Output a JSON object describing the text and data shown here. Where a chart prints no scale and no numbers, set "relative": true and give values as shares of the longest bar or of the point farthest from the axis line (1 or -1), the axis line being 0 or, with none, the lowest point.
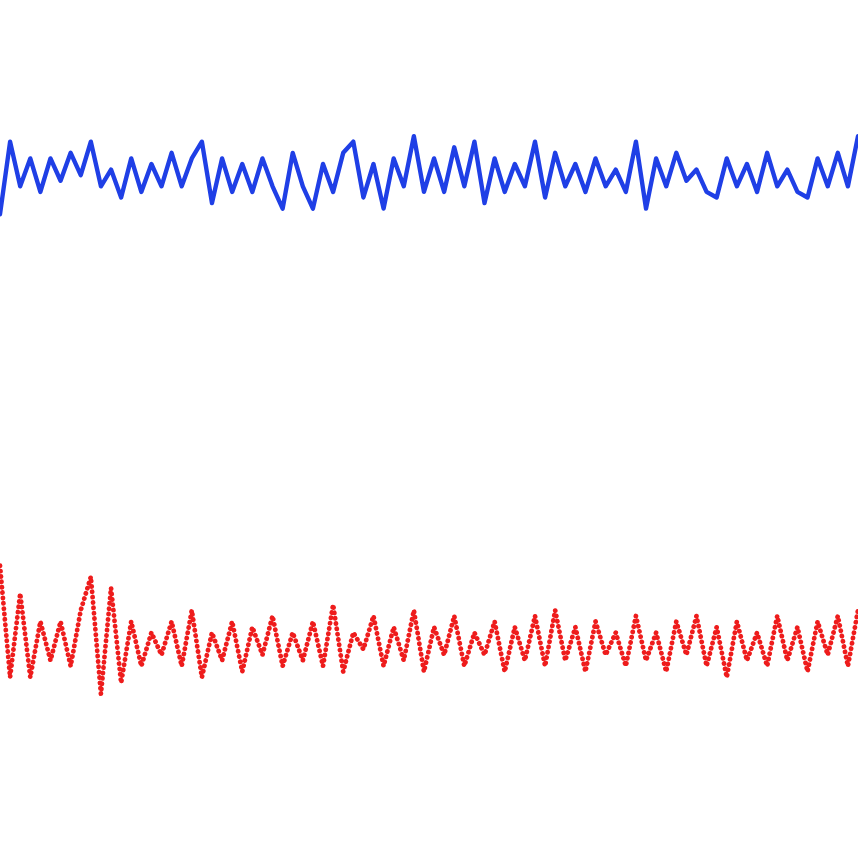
{
  "chart_data": {
    "type": "line",
    "relative": true,
    "categories": [
      null,
      null,
      null,
      null,
      null,
      null,
      null,
      null,
      null,
      null,
      null,
      null,
      null,
      null,
      null,
      null,
      null,
      null,
      null,
      null,
      null,
      null,
      null,
      null,
      null,
      null,
      null,
      null,
      null,
      null,
      null,
      null,
      null,
      null,
      null,
      null,
      null,
      null,
      null,
      null,
      null,
      null,
      null,
      null,
      null,
      null,
      null,
      null,
      null,
      null,
      null,
      null,
      null,
      null,
      null,
      null,
      null,
      null,
      null,
      null,
      null,
      null,
      null,
      null,
      null,
      null,
      null,
      null,
      null,
      null,
      null,
      null,
      null,
      null,
      null,
      null,
      null,
      null,
      null,
      null,
      null,
      null,
      null,
      null,
      null,
      null
    ],
    "series": [
      {
        "color": "#1f3fe6",
        "line_style": "solid",
        "values": [
          0.86,
          0.99,
          0.91,
          0.96,
          0.9,
          0.96,
          0.92,
          0.97,
          0.93,
          0.99,
          0.91,
          0.94,
          0.89,
          0.96,
          0.9,
          0.95,
          0.91,
          0.97,
          0.91,
          0.96,
          0.99,
          0.88,
          0.96,
          0.9,
          0.95,
          0.9,
          0.96,
          0.91,
          0.87,
          0.97,
          0.91,
          0.87,
          0.95,
          0.9,
          0.97,
          0.99,
          0.89,
          0.95,
          0.87,
          0.96,
          0.91,
          1.0,
          0.9,
          0.96,
          0.9,
          0.98,
          0.91,
          0.99,
          0.88,
          0.96,
          0.9,
          0.95,
          0.91,
          0.99,
          0.89,
          0.97,
          0.91,
          0.95,
          0.9,
          0.96,
          0.91,
          0.94,
          0.9,
          0.99,
          0.87,
          0.96,
          0.91,
          0.97,
          0.92,
          0.94,
          0.9,
          0.89,
          0.96,
          0.91,
          0.95,
          0.9,
          0.97,
          0.91,
          0.94,
          0.9,
          0.89,
          0.96,
          0.91,
          0.97,
          0.91,
          1.0
        ]
      },
      {
        "color": "#ee1c1c",
        "line_style": "dotted",
        "values": [
          0.23,
          0.03,
          0.18,
          0.03,
          0.13,
          0.06,
          0.13,
          0.05,
          0.15,
          0.21,
          0,
          0.19,
          0.02,
          0.13,
          0.05,
          0.11,
          0.07,
          0.13,
          0.05,
          0.15,
          0.03,
          0.11,
          0.06,
          0.13,
          0.04,
          0.12,
          0.07,
          0.14,
          0.05,
          0.11,
          0.06,
          0.13,
          0.05,
          0.16,
          0.04,
          0.11,
          0.08,
          0.14,
          0.05,
          0.12,
          0.06,
          0.15,
          0.04,
          0.12,
          0.07,
          0.14,
          0.05,
          0.11,
          0.07,
          0.13,
          0.04,
          0.12,
          0.06,
          0.14,
          0.05,
          0.15,
          0.06,
          0.12,
          0.04,
          0.13,
          0.07,
          0.11,
          0.05,
          0.14,
          0.06,
          0.11,
          0.04,
          0.13,
          0.07,
          0.14,
          0.05,
          0.12,
          0.03,
          0.13,
          0.06,
          0.11,
          0.05,
          0.14,
          0.06,
          0.12,
          0.04,
          0.13,
          0.07,
          0.14,
          0.05,
          0.15
        ]
      }
    ]
  }
}
